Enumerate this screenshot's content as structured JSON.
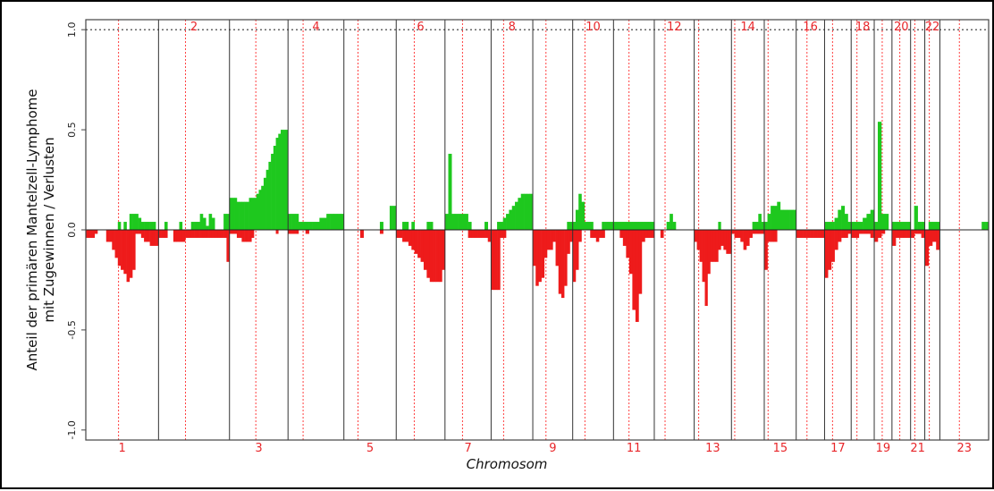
{
  "chart_data": {
    "type": "bar",
    "xlabel": "Chromosom",
    "ylabel_line1": "Anteil der primären Mantelzell-Lymphome",
    "ylabel_line2": "mit Zugewinnen / Verlusten",
    "ylim": [
      -1.05,
      1.05
    ],
    "yticks": [
      "-1.0",
      "-0.5",
      "0.0",
      "0.5",
      "1.0"
    ],
    "ytick_values": [
      -1.0,
      -0.5,
      0.0,
      0.5,
      1.0
    ],
    "reference_line": 1.0,
    "gain_color": "#1ec81e",
    "loss_color": "#ee1b1b",
    "centromere_color": "#ff4040",
    "chromosomes": [
      {
        "label": "1",
        "size": 8.2,
        "centromere": 0.45
      },
      {
        "label": "2",
        "size": 8.0,
        "centromere": 0.38
      },
      {
        "label": "3",
        "size": 6.6,
        "centromere": 0.45
      },
      {
        "label": "4",
        "size": 6.3,
        "centromere": 0.27
      },
      {
        "label": "5",
        "size": 5.9,
        "centromere": 0.27
      },
      {
        "label": "6",
        "size": 5.5,
        "centromere": 0.37
      },
      {
        "label": "7",
        "size": 5.2,
        "centromere": 0.38
      },
      {
        "label": "8",
        "size": 4.7,
        "centromere": 0.3
      },
      {
        "label": "9",
        "size": 4.5,
        "centromere": 0.33
      },
      {
        "label": "10",
        "size": 4.6,
        "centromere": 0.3
      },
      {
        "label": "11",
        "size": 4.6,
        "centromere": 0.38
      },
      {
        "label": "12",
        "size": 4.5,
        "centromere": 0.27
      },
      {
        "label": "13",
        "size": 4.2,
        "centromere": 0.12
      },
      {
        "label": "14",
        "size": 3.7,
        "centromere": 0.1
      },
      {
        "label": "15",
        "size": 3.6,
        "centromere": 0.12
      },
      {
        "label": "16",
        "size": 3.2,
        "centromere": 0.38
      },
      {
        "label": "17",
        "size": 3.0,
        "centromere": 0.3
      },
      {
        "label": "18",
        "size": 2.6,
        "centromere": 0.25
      },
      {
        "label": "19",
        "size": 2.0,
        "centromere": 0.45
      },
      {
        "label": "20",
        "size": 2.1,
        "centromere": 0.42
      },
      {
        "label": "21",
        "size": 1.6,
        "centromere": 0.3
      },
      {
        "label": "22",
        "size": 1.7,
        "centromere": 0.3
      },
      {
        "label": "23",
        "size": 5.5,
        "centromere": 0.4
      }
    ],
    "gains": [
      [
        0.0,
        0,
        0,
        0,
        0,
        0,
        0,
        0,
        0,
        0,
        0,
        0.04,
        0,
        0.04,
        0,
        0.08,
        0.08,
        0.08,
        0.06,
        0.04,
        0.04,
        0.04,
        0.04,
        0.04,
        0
      ],
      [
        0,
        0,
        0.04,
        0,
        0,
        0,
        0,
        0.04,
        0,
        0,
        0,
        0.04,
        0.04,
        0.04,
        0.08,
        0.06,
        0.02,
        0.08,
        0.06,
        0,
        0,
        0,
        0.08,
        0.08
      ],
      [
        0.16,
        0.16,
        0.16,
        0.14,
        0.14,
        0.14,
        0.14,
        0.14,
        0.16,
        0.16,
        0.16,
        0.18,
        0.2,
        0.22,
        0.26,
        0.3,
        0.34,
        0.38,
        0.42,
        0.46,
        0.48,
        0.5,
        0.5,
        0.5
      ],
      [
        0.08,
        0.08,
        0.08,
        0.04,
        0.04,
        0.04,
        0.04,
        0.04,
        0.04,
        0.06,
        0.06,
        0.08,
        0.08,
        0.08,
        0.08,
        0.08
      ],
      [
        0,
        0,
        0,
        0,
        0,
        0,
        0,
        0,
        0,
        0,
        0,
        0.04,
        0,
        0,
        0.12,
        0.12
      ],
      [
        0,
        0,
        0.04,
        0.04,
        0,
        0.04,
        0,
        0,
        0,
        0,
        0.04,
        0.04,
        0,
        0,
        0,
        0
      ],
      [
        0.08,
        0.38,
        0.08,
        0.08,
        0.08,
        0.08,
        0.08,
        0.04,
        0,
        0,
        0,
        0,
        0.04,
        0
      ],
      [
        0,
        0,
        0.04,
        0.04,
        0.06,
        0.08,
        0.1,
        0.12,
        0.14,
        0.16,
        0.18,
        0.18,
        0.18,
        0.18
      ],
      [
        0,
        0,
        0,
        0,
        0,
        0,
        0,
        0,
        0,
        0,
        0,
        0,
        0.04,
        0.04
      ],
      [
        0.04,
        0.1,
        0.18,
        0.14,
        0.04,
        0.04,
        0.04,
        0,
        0,
        0,
        0.04,
        0.04,
        0.04,
        0.04
      ],
      [
        0.04,
        0.04,
        0.04,
        0.04,
        0.04,
        0.04,
        0.04,
        0.04,
        0.04,
        0.04,
        0.04,
        0.04,
        0.04
      ],
      [
        0,
        0,
        0,
        0,
        0.04,
        0.08,
        0.04,
        0,
        0,
        0,
        0,
        0,
        0
      ],
      [
        0,
        0,
        0,
        0,
        0,
        0,
        0,
        0,
        0,
        0.04,
        0,
        0,
        0,
        0
      ],
      [
        0,
        0,
        0,
        0,
        0,
        0,
        0,
        0.04,
        0.04,
        0.08,
        0.04
      ],
      [
        0.04,
        0.08,
        0.12,
        0.12,
        0.14,
        0.1,
        0.1,
        0.1,
        0.1,
        0.1
      ],
      [
        0,
        0,
        0,
        0,
        0,
        0,
        0,
        0
      ],
      [
        0.04,
        0.04,
        0.04,
        0.06,
        0.1,
        0.12,
        0.08,
        0.04
      ],
      [
        0.04,
        0.04,
        0.04,
        0.06,
        0.08,
        0.1
      ],
      [
        0.04,
        0.54,
        0.08,
        0.08,
        0
      ],
      [
        0.04,
        0.04,
        0.04,
        0.04,
        0.04
      ],
      [
        0,
        0.12,
        0.04,
        0.04
      ],
      [
        0,
        0.04,
        0.04,
        0.04
      ],
      [
        0,
        0,
        0,
        0,
        0,
        0,
        0,
        0,
        0,
        0,
        0,
        0,
        0.04,
        0.04
      ]
    ],
    "losses": [
      [
        0.04,
        0.04,
        0.04,
        0.02,
        0,
        0,
        0,
        0.06,
        0.06,
        0.1,
        0.14,
        0.18,
        0.2,
        0.22,
        0.26,
        0.24,
        0.2,
        0.02,
        0.02,
        0.04,
        0.06,
        0.06,
        0.08,
        0.08,
        0.08
      ],
      [
        0.04,
        0.04,
        0.04,
        0,
        0,
        0.06,
        0.06,
        0.06,
        0.06,
        0.04,
        0.04,
        0.04,
        0.04,
        0.04,
        0.04,
        0.04,
        0.04,
        0.04,
        0.04,
        0.04,
        0.04,
        0.04,
        0.04,
        0.16
      ],
      [
        0.02,
        0.02,
        0.02,
        0.04,
        0.04,
        0.06,
        0.06,
        0.06,
        0.06,
        0.04,
        0,
        0,
        0,
        0,
        0,
        0,
        0,
        0,
        0,
        0.02,
        0,
        0,
        0,
        0
      ],
      [
        0.02,
        0.02,
        0.02,
        0,
        0,
        0.02,
        0,
        0,
        0,
        0,
        0,
        0,
        0,
        0,
        0,
        0
      ],
      [
        0,
        0,
        0,
        0,
        0,
        0.04,
        0,
        0,
        0,
        0,
        0,
        0.02,
        0,
        0,
        0,
        0
      ],
      [
        0.04,
        0.04,
        0.06,
        0.06,
        0.08,
        0.1,
        0.12,
        0.14,
        0.16,
        0.2,
        0.24,
        0.26,
        0.26,
        0.26,
        0.26,
        0.2
      ],
      [
        0,
        0,
        0,
        0,
        0,
        0,
        0,
        0.04,
        0.04,
        0.04,
        0.04,
        0.04,
        0.04,
        0.06
      ],
      [
        0.3,
        0.3,
        0.3,
        0.04,
        0.04,
        0,
        0,
        0,
        0,
        0,
        0,
        0,
        0,
        0
      ],
      [
        0.18,
        0.28,
        0.26,
        0.24,
        0.14,
        0.1,
        0.1,
        0.06,
        0.18,
        0.32,
        0.34,
        0.28,
        0.12,
        0.06
      ],
      [
        0.26,
        0.2,
        0.06,
        0,
        0,
        0,
        0.04,
        0.04,
        0.06,
        0.04,
        0.04,
        0,
        0,
        0
      ],
      [
        0,
        0,
        0.04,
        0.08,
        0.14,
        0.22,
        0.4,
        0.46,
        0.32,
        0.06,
        0.04,
        0.04,
        0.04
      ],
      [
        0,
        0,
        0.04,
        0,
        0,
        0,
        0,
        0,
        0,
        0,
        0,
        0,
        0
      ],
      [
        0.06,
        0.1,
        0.16,
        0.26,
        0.38,
        0.22,
        0.16,
        0.16,
        0.16,
        0.1,
        0.08,
        0.1,
        0.12,
        0.12
      ],
      [
        0.02,
        0.04,
        0.04,
        0.06,
        0.1,
        0.08,
        0.04,
        0.02,
        0.02,
        0.02,
        0.02
      ],
      [
        0.2,
        0.06,
        0.06,
        0.06,
        0,
        0,
        0,
        0,
        0,
        0
      ],
      [
        0.04,
        0.04,
        0.04,
        0.04,
        0.04,
        0.04,
        0.04,
        0.04
      ],
      [
        0.24,
        0.2,
        0.16,
        0.1,
        0.06,
        0.04,
        0.04,
        0.02
      ],
      [
        0.04,
        0.04,
        0.02,
        0.02,
        0.02,
        0.04
      ],
      [
        0.06,
        0.04,
        0.02,
        0,
        0
      ],
      [
        0.08,
        0.04,
        0.04,
        0.04,
        0.04
      ],
      [
        0.04,
        0.02,
        0.02,
        0.04
      ],
      [
        0.18,
        0.08,
        0.06,
        0.1
      ],
      [
        0,
        0,
        0,
        0,
        0,
        0,
        0,
        0,
        0,
        0,
        0,
        0,
        0,
        0
      ]
    ]
  }
}
